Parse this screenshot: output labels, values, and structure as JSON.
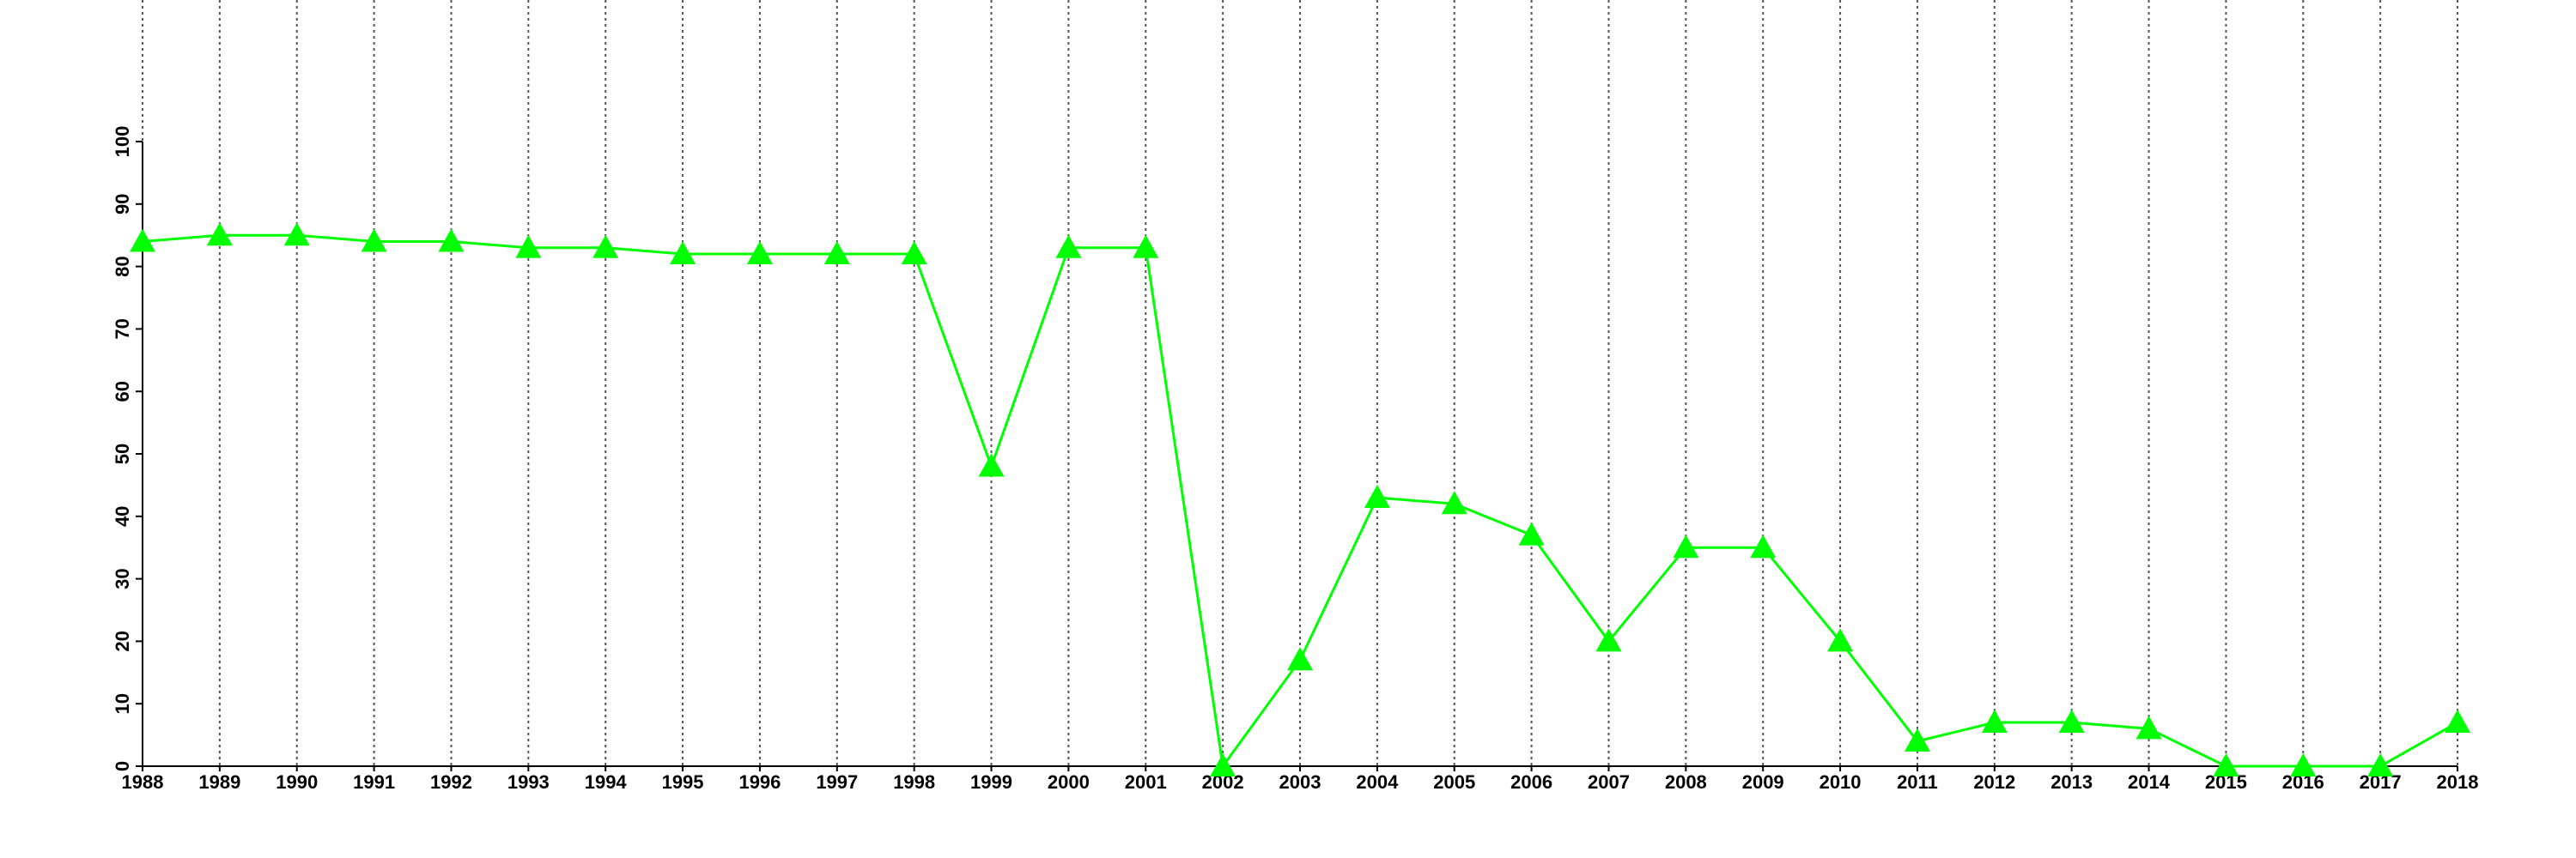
{
  "chart_data": {
    "type": "line",
    "x": [
      1988,
      1989,
      1990,
      1991,
      1992,
      1993,
      1994,
      1995,
      1996,
      1997,
      1998,
      1999,
      2000,
      2001,
      2002,
      2003,
      2004,
      2005,
      2006,
      2007,
      2008,
      2009,
      2010,
      2011,
      2012,
      2013,
      2014,
      2015,
      2016,
      2017,
      2018
    ],
    "values": [
      84,
      85,
      85,
      84,
      84,
      83,
      83,
      82,
      82,
      82,
      82,
      48,
      83,
      83,
      0,
      17,
      43,
      42,
      37,
      20,
      35,
      35,
      20,
      4,
      7,
      7,
      6,
      0,
      0,
      0,
      7
    ],
    "color": "#00ff00",
    "marker": "triangle",
    "xlim": [
      1988,
      2018
    ],
    "xticks": [
      1988,
      1989,
      1990,
      1991,
      1992,
      1993,
      1994,
      1995,
      1996,
      1997,
      1998,
      1999,
      2000,
      2001,
      2002,
      2003,
      2004,
      2005,
      2006,
      2007,
      2008,
      2009,
      2010,
      2011,
      2012,
      2013,
      2014,
      2015,
      2016,
      2017,
      2018
    ],
    "ylim": [
      0,
      100
    ],
    "yticks": [
      0,
      10,
      20,
      30,
      40,
      50,
      60,
      70,
      80,
      90,
      100
    ],
    "grid": "x"
  }
}
